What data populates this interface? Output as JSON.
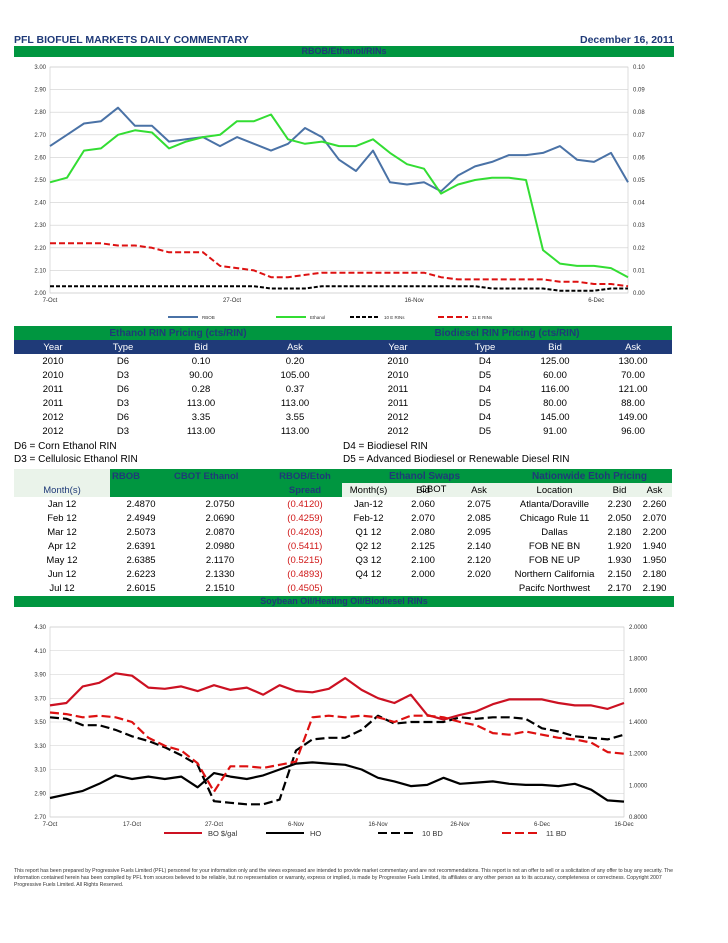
{
  "header": {
    "title": "PFL BIOFUEL MARKETS DAILY COMMENTARY",
    "date": "December 16, 2011"
  },
  "chart1_title": "RBOB/Ethanol/RINs",
  "chart_data": [
    {
      "type": "line",
      "title": "RBOB/Ethanol/RINs",
      "x": [
        "7-Oct",
        "10-Oct",
        "12-Oct",
        "14-Oct",
        "17-Oct",
        "19-Oct",
        "21-Oct",
        "24-Oct",
        "26-Oct",
        "27-Oct",
        "28-Oct",
        "31-Oct",
        "2-Nov",
        "4-Nov",
        "7-Nov",
        "9-Nov",
        "11-Nov",
        "14-Nov",
        "16-Nov",
        "18-Nov",
        "21-Nov",
        "23-Nov",
        "25-Nov",
        "28-Nov",
        "30-Nov",
        "2-Dec",
        "5-Dec",
        "6-Dec",
        "7-Dec",
        "8-Dec",
        "9-Dec",
        "12-Dec",
        "13-Dec",
        "14-Dec",
        "15-Dec"
      ],
      "xticks": [
        "7-Oct",
        "27-Oct",
        "16-Nov",
        "6-Dec"
      ],
      "left_axis": {
        "min": 2.0,
        "max": 3.0,
        "ticks": [
          "2.00",
          "2.10",
          "2.20",
          "2.30",
          "2.40",
          "2.50",
          "2.60",
          "2.70",
          "2.80",
          "2.90",
          "3.00"
        ]
      },
      "right_axis": {
        "min": 0.0,
        "max": 0.1,
        "ticks": [
          "0.00",
          "0.01",
          "0.02",
          "0.03",
          "0.04",
          "0.05",
          "0.06",
          "0.07",
          "0.08",
          "0.09",
          "0.10"
        ]
      },
      "series": [
        {
          "name": "RBOB",
          "axis": "left",
          "color": "#4a72a6",
          "values": [
            2.65,
            2.7,
            2.75,
            2.76,
            2.82,
            2.74,
            2.74,
            2.67,
            2.68,
            2.69,
            2.65,
            2.69,
            2.66,
            2.63,
            2.66,
            2.73,
            2.69,
            2.59,
            2.54,
            2.63,
            2.49,
            2.48,
            2.49,
            2.45,
            2.52,
            2.56,
            2.58,
            2.61,
            2.61,
            2.62,
            2.65,
            2.59,
            2.58,
            2.62,
            2.49
          ]
        },
        {
          "name": "Ethanol",
          "axis": "left",
          "color": "#33dd33",
          "values": [
            2.49,
            2.51,
            2.63,
            2.64,
            2.7,
            2.72,
            2.71,
            2.64,
            2.67,
            2.69,
            2.7,
            2.76,
            2.76,
            2.79,
            2.68,
            2.66,
            2.67,
            2.65,
            2.65,
            2.68,
            2.62,
            2.57,
            2.55,
            2.44,
            2.48,
            2.5,
            2.51,
            2.51,
            2.5,
            2.19,
            2.13,
            2.12,
            2.12,
            2.11,
            2.07
          ]
        },
        {
          "name": "10 E RINs",
          "axis": "right",
          "color": "#000000",
          "dash": "4,2",
          "values": [
            0.003,
            0.003,
            0.003,
            0.003,
            0.003,
            0.003,
            0.003,
            0.003,
            0.003,
            0.003,
            0.003,
            0.003,
            0.003,
            0.002,
            0.002,
            0.002,
            0.003,
            0.003,
            0.003,
            0.003,
            0.003,
            0.003,
            0.003,
            0.003,
            0.003,
            0.003,
            0.002,
            0.002,
            0.002,
            0.002,
            0.001,
            0.001,
            0.001,
            0.002,
            0.002
          ]
        },
        {
          "name": "11 E RINs",
          "axis": "right",
          "color": "#dd1111",
          "dash": "6,3",
          "values": [
            0.022,
            0.022,
            0.022,
            0.022,
            0.021,
            0.021,
            0.02,
            0.018,
            0.018,
            0.018,
            0.012,
            0.011,
            0.01,
            0.007,
            0.007,
            0.008,
            0.009,
            0.009,
            0.009,
            0.009,
            0.009,
            0.009,
            0.009,
            0.007,
            0.006,
            0.006,
            0.006,
            0.006,
            0.006,
            0.006,
            0.005,
            0.005,
            0.004,
            0.004,
            0.003
          ]
        }
      ]
    },
    {
      "type": "line",
      "title": "Soybean Oil/Heating Oil/Biodiesel RINs",
      "x": [
        "7-Oct",
        "10-Oct",
        "12-Oct",
        "14-Oct",
        "17-Oct",
        "19-Oct",
        "21-Oct",
        "24-Oct",
        "26-Oct",
        "27-Oct",
        "28-Oct",
        "31-Oct",
        "2-Nov",
        "4-Nov",
        "7-Nov",
        "9-Nov",
        "11-Nov",
        "14-Nov",
        "16-Nov",
        "18-Nov",
        "21-Nov",
        "23-Nov",
        "25-Nov",
        "28-Nov",
        "30-Nov",
        "2-Dec",
        "5-Dec",
        "6-Dec",
        "7-Dec",
        "8-Dec",
        "9-Dec",
        "12-Dec",
        "13-Dec",
        "14-Dec",
        "15-Dec",
        "16-Dec"
      ],
      "xticks": [
        "7-Oct",
        "17-Oct",
        "27-Oct",
        "6-Nov",
        "16-Nov",
        "26-Nov",
        "6-Dec",
        "16-Dec"
      ],
      "left_axis": {
        "min": 2.7,
        "max": 4.3,
        "ticks": [
          "2.70",
          "2.90",
          "3.10",
          "3.30",
          "3.50",
          "3.70",
          "3.90",
          "4.10",
          "4.30"
        ]
      },
      "right_axis": {
        "min": 0.8,
        "max": 2.0,
        "ticks": [
          "0.8000",
          "1.0000",
          "1.2000",
          "1.4000",
          "1.6000",
          "1.8000",
          "2.0000"
        ]
      },
      "series": [
        {
          "name": "BO $/gal",
          "axis": "left",
          "color": "#cc1122",
          "values": [
            3.64,
            3.66,
            3.8,
            3.83,
            3.91,
            3.89,
            3.79,
            3.78,
            3.8,
            3.76,
            3.81,
            3.77,
            3.79,
            3.73,
            3.81,
            3.76,
            3.75,
            3.78,
            3.87,
            3.77,
            3.7,
            3.66,
            3.73,
            3.56,
            3.52,
            3.56,
            3.59,
            3.65,
            3.69,
            3.69,
            3.69,
            3.66,
            3.64,
            3.64,
            3.61,
            3.66
          ]
        },
        {
          "name": "HO",
          "axis": "left",
          "color": "#000000",
          "values": [
            2.86,
            2.89,
            2.92,
            2.98,
            3.05,
            3.02,
            3.04,
            3.02,
            3.04,
            2.95,
            3.07,
            3.04,
            3.02,
            3.05,
            3.1,
            3.15,
            3.16,
            3.15,
            3.14,
            3.1,
            3.03,
            3.0,
            2.96,
            2.97,
            3.03,
            2.98,
            2.99,
            3.0,
            2.98,
            2.97,
            2.97,
            2.96,
            2.98,
            2.93,
            2.84,
            2.83
          ]
        },
        {
          "name": "10 BD",
          "axis": "right",
          "color": "#000000",
          "dash": "9,4",
          "values": [
            1.43,
            1.42,
            1.38,
            1.38,
            1.35,
            1.31,
            1.28,
            1.24,
            1.19,
            1.13,
            0.9,
            0.89,
            0.88,
            0.88,
            0.91,
            1.22,
            1.29,
            1.3,
            1.3,
            1.35,
            1.44,
            1.39,
            1.4,
            1.4,
            1.4,
            1.43,
            1.42,
            1.43,
            1.43,
            1.42,
            1.36,
            1.34,
            1.31,
            1.3,
            1.29,
            1.32
          ]
        },
        {
          "name": "11 BD",
          "axis": "right",
          "color": "#dd1111",
          "dash": "9,4",
          "values": [
            1.46,
            1.45,
            1.43,
            1.44,
            1.43,
            1.4,
            1.3,
            1.25,
            1.22,
            1.14,
            0.96,
            1.12,
            1.12,
            1.11,
            1.13,
            1.15,
            1.43,
            1.44,
            1.43,
            1.44,
            1.43,
            1.4,
            1.44,
            1.44,
            1.43,
            1.4,
            1.38,
            1.33,
            1.32,
            1.34,
            1.32,
            1.3,
            1.29,
            1.27,
            1.21,
            1.2
          ]
        }
      ]
    }
  ],
  "legend1": [
    "RBOB",
    "Ethanol",
    "10 E RINs",
    "11 E RINs"
  ],
  "legend2": [
    "BO $/gal",
    "HO",
    "10 BD",
    "11 BD"
  ],
  "ethanol_rin": {
    "title": "Ethanol RIN Pricing (cts/RIN)",
    "headers": [
      "Year",
      "Type",
      "Bid",
      "Ask"
    ],
    "rows": [
      [
        "2010",
        "D6",
        "0.10",
        "0.20"
      ],
      [
        "2010",
        "D3",
        "90.00",
        "105.00"
      ],
      [
        "2011",
        "D6",
        "0.28",
        "0.37"
      ],
      [
        "2011",
        "D3",
        "113.00",
        "113.00"
      ],
      [
        "2012",
        "D6",
        "3.35",
        "3.55"
      ],
      [
        "2012",
        "D3",
        "113.00",
        "113.00"
      ]
    ]
  },
  "biodiesel_rin": {
    "title": "Biodiesel RIN Pricing (cts/RIN)",
    "headers": [
      "Year",
      "Type",
      "Bid",
      "Ask"
    ],
    "rows": [
      [
        "2010",
        "D4",
        "125.00",
        "130.00"
      ],
      [
        "2010",
        "D5",
        "60.00",
        "70.00"
      ],
      [
        "2011",
        "D4",
        "116.00",
        "121.00"
      ],
      [
        "2011",
        "D5",
        "80.00",
        "88.00"
      ],
      [
        "2012",
        "D4",
        "145.00",
        "149.00"
      ],
      [
        "2012",
        "D5",
        "91.00",
        "96.00"
      ]
    ]
  },
  "definitions": {
    "d6": "D6 = Corn Ethanol RIN",
    "d3": "D3 = Cellulosic Ethanol RIN",
    "d4": "D4 = Biodiesel RIN",
    "d5": "D5 = Advanced Biodiesel or Renewable Diesel RIN"
  },
  "rbob_table": {
    "h_rbob": "RBOB",
    "h_cbot": "CBOT Ethanol",
    "h_spread1": "RBOB/Etoh",
    "h_spread2": "Spread",
    "h_month": "Month(s)",
    "rows": [
      [
        "Jan 12",
        "2.4870",
        "2.0750",
        "(0.4120)"
      ],
      [
        "Feb 12",
        "2.4949",
        "2.0690",
        "(0.4259)"
      ],
      [
        "Mar 12",
        "2.5073",
        "2.0870",
        "(0.4203)"
      ],
      [
        "Apr 12",
        "2.6391",
        "2.0980",
        "(0.5411)"
      ],
      [
        "May 12",
        "2.6385",
        "2.1170",
        "(0.5215)"
      ],
      [
        "Jun 12",
        "2.6223",
        "2.1330",
        "(0.4893)"
      ],
      [
        "Jul 12",
        "2.6015",
        "2.1510",
        "(0.4505)"
      ]
    ]
  },
  "swaps_table": {
    "title": "Ethanol Swaps",
    "cbot": "CBOT",
    "headers": [
      "Month(s)",
      "Bid",
      "Ask"
    ],
    "rows": [
      [
        "Jan-12",
        "2.060",
        "2.075"
      ],
      [
        "Feb-12",
        "2.070",
        "2.085"
      ],
      [
        "Q1 12",
        "2.080",
        "2.095"
      ],
      [
        "Q2 12",
        "2.125",
        "2.140"
      ],
      [
        "Q3 12",
        "2.100",
        "2.120"
      ],
      [
        "Q4 12",
        "2.000",
        "2.020"
      ]
    ]
  },
  "etoh_table": {
    "title": "Nationwide Etoh Pricing",
    "headers": [
      "Location",
      "Bid",
      "Ask"
    ],
    "rows": [
      [
        "Atlanta/Doraville",
        "2.230",
        "2.260"
      ],
      [
        "Chicago Rule 11",
        "2.050",
        "2.070"
      ],
      [
        "Dallas",
        "2.180",
        "2.200"
      ],
      [
        "FOB NE BN",
        "1.920",
        "1.940"
      ],
      [
        "FOB NE UP",
        "1.930",
        "1.950"
      ],
      [
        "Northern California",
        "2.150",
        "2.180"
      ],
      [
        "Pacifc Northwest",
        "2.170",
        "2.190"
      ]
    ]
  },
  "chart2_title": "Soybean Oil/Heating Oil/Biodiesel RINs",
  "footnote": "This report has been prepared by Progressive Fuels Limited (PFL) personnel for your information only and the views expressed are intended to provide market commentary and are not recommendations. This report is not an offer to sell or a solicitation of any offer to buy any security. The information contained herein has been compiled by PFL from sources believed to be reliable, but no representation or warranty, express or implied, is made by Progressive Fuels Limited, its affiliates or any other person as to its accuracy, completeness or correctness. Copyright 2007 Progressive Fuels Limited. All Rights Reserved."
}
